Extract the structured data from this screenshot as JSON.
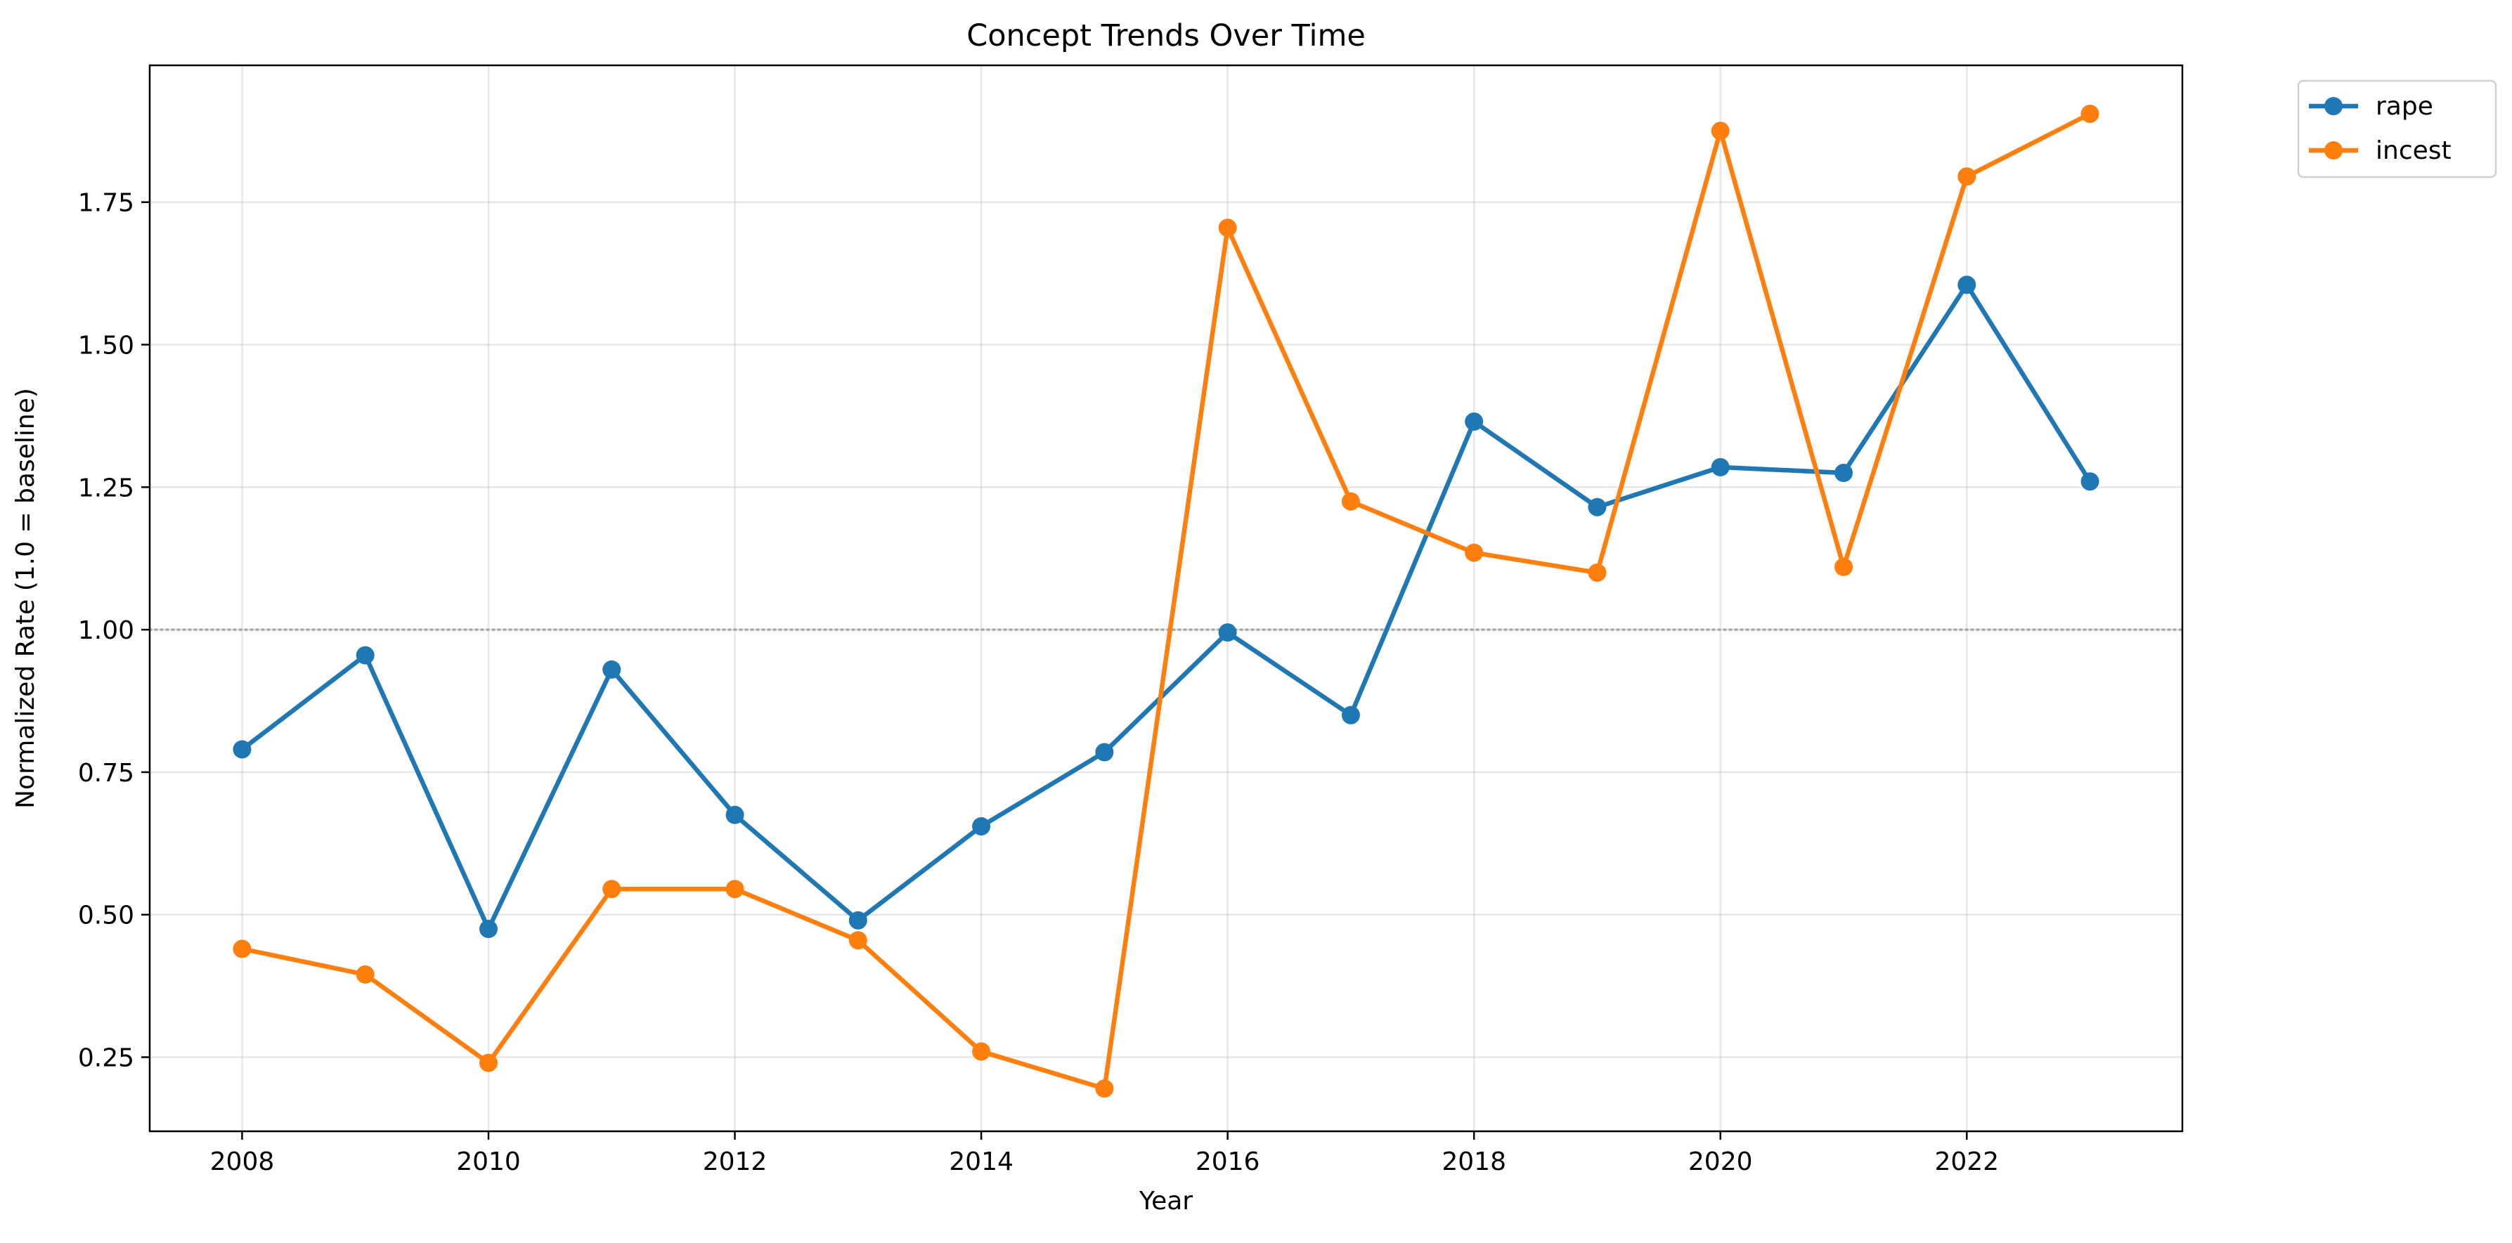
{
  "chart_data": {
    "type": "line",
    "title": "Concept Trends Over Time",
    "xlabel": "Year",
    "ylabel": "Normalized Rate (1.0 = baseline)",
    "x": [
      2008,
      2009,
      2010,
      2011,
      2012,
      2013,
      2014,
      2015,
      2016,
      2017,
      2018,
      2019,
      2020,
      2021,
      2022,
      2023
    ],
    "xlim": [
      2007.25,
      2023.75
    ],
    "ylim": [
      0.12,
      1.99
    ],
    "x_ticks": [
      2008,
      2010,
      2012,
      2014,
      2016,
      2018,
      2020,
      2022
    ],
    "y_ticks": [
      0.25,
      0.5,
      0.75,
      1.0,
      1.25,
      1.5,
      1.75
    ],
    "y_tick_labels": [
      "0.25",
      "0.50",
      "0.75",
      "1.00",
      "1.25",
      "1.50",
      "1.75"
    ],
    "baseline": 1.0,
    "grid": true,
    "legend_position": "outside-top-right",
    "series": [
      {
        "name": "rape",
        "color": "#1f77b4",
        "values": [
          0.79,
          0.955,
          0.475,
          0.93,
          0.675,
          0.49,
          0.655,
          0.785,
          0.995,
          0.85,
          1.365,
          1.215,
          1.285,
          1.275,
          1.605,
          1.26
        ]
      },
      {
        "name": "incest",
        "color": "#ff7f0e",
        "values": [
          0.44,
          0.395,
          0.24,
          0.545,
          0.545,
          0.455,
          0.26,
          0.195,
          1.705,
          1.225,
          1.135,
          1.1,
          1.875,
          1.11,
          1.795,
          1.905
        ]
      }
    ]
  }
}
